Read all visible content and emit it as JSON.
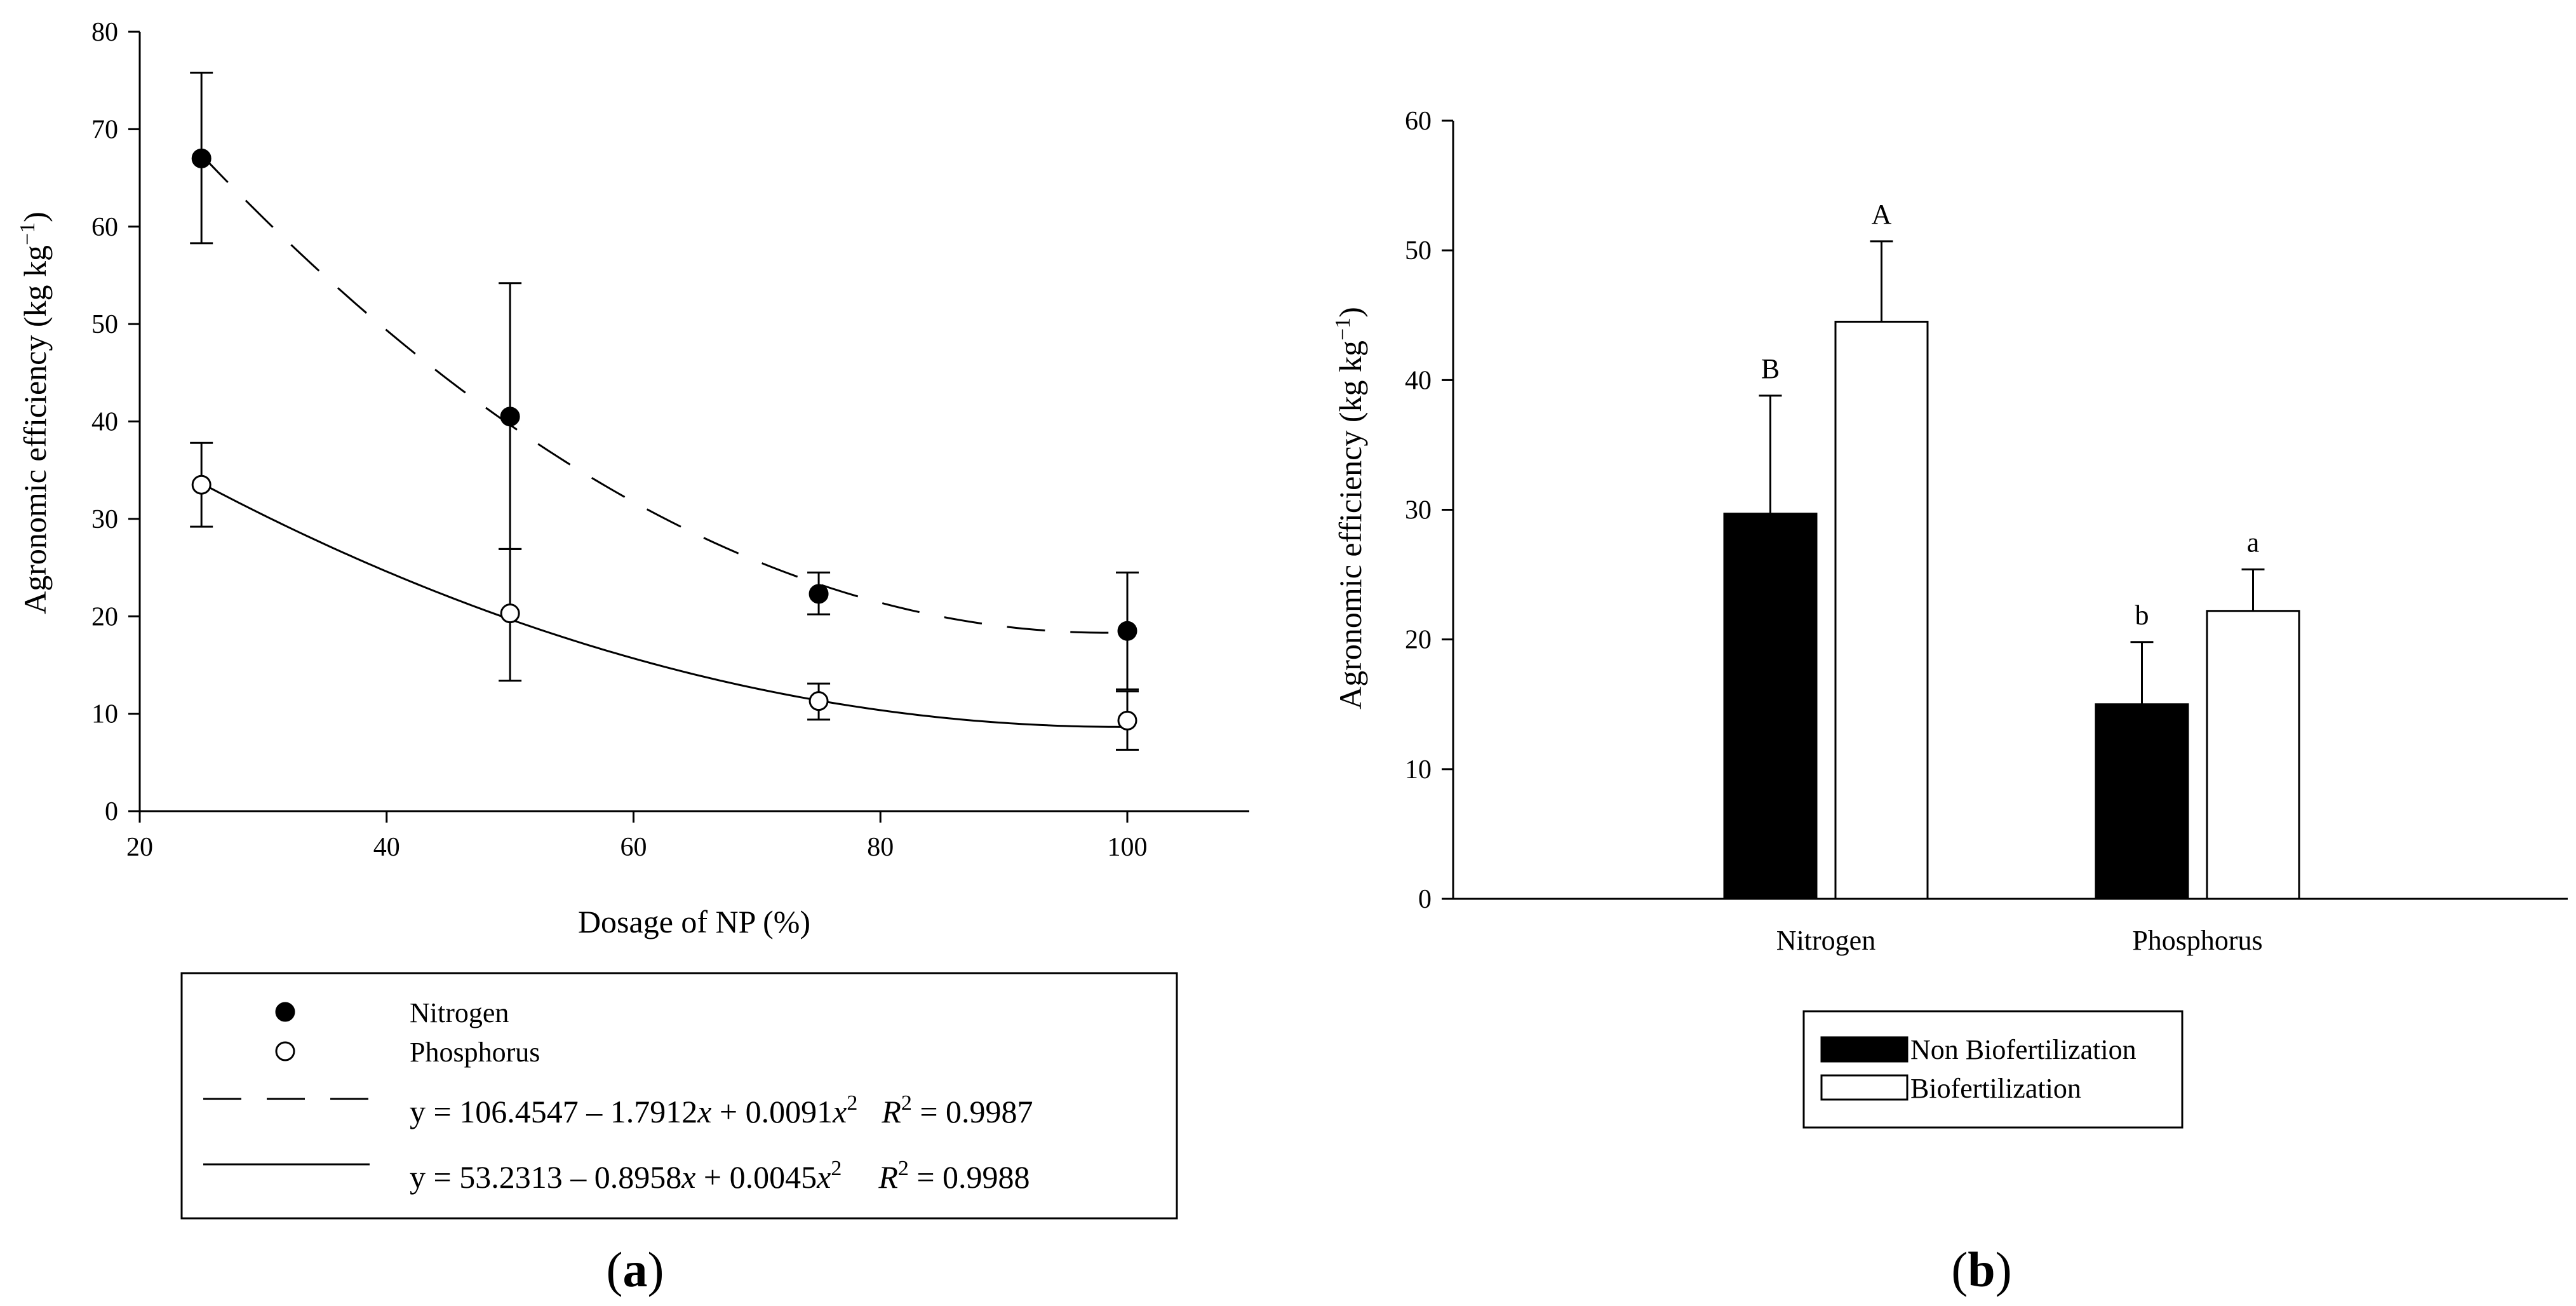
{
  "chart_data": [
    {
      "type": "scatter",
      "panel": "(a)",
      "panel_letter": "a",
      "xlabel": "Dosage of NP (%)",
      "ylabel": "Agronomic efficiency (kg kg",
      "ylabel_sup": "−1",
      "ylabel_close": ")",
      "xlim": [
        20,
        110
      ],
      "ylim": [
        0,
        80
      ],
      "xticks": [
        20,
        40,
        60,
        80,
        100
      ],
      "yticks": [
        0,
        10,
        20,
        30,
        40,
        50,
        60,
        70,
        80
      ],
      "series": [
        {
          "name": "Nitrogen",
          "marker": "filled-circle",
          "x": [
            25,
            50,
            75,
            100
          ],
          "y": [
            67,
            40.5,
            22.3,
            18.5
          ],
          "err_upper": [
            75.8,
            54.2,
            24.5,
            24.5
          ],
          "err_lower": [
            58.3,
            26.9,
            20.2,
            12.5
          ],
          "fit": {
            "a": 106.4547,
            "b": -1.7912,
            "c": 0.0091,
            "style": "dashed",
            "x_from": 25,
            "x_to": 100
          }
        },
        {
          "name": "Phosphorus",
          "marker": "open-circle",
          "x": [
            25,
            50,
            75,
            100
          ],
          "y": [
            33.5,
            20.3,
            11.3,
            9.3
          ],
          "err_upper": [
            37.8,
            26.9,
            13.1,
            12.3
          ],
          "err_lower": [
            29.2,
            13.4,
            9.4,
            6.3
          ],
          "fit": {
            "a": 53.2313,
            "b": -0.8958,
            "c": 0.0045,
            "style": "solid",
            "x_from": 25,
            "x_to": 100
          }
        }
      ],
      "legend": {
        "entries": [
          "Nitrogen",
          "Phosphorus"
        ],
        "equations": [
          {
            "line": "dashed",
            "y_eq": "y = 106.4547 – 1.7912",
            "x1": "x",
            "mid": " + 0.0091",
            "x2": "x",
            "exp": "2",
            "r_label": "R",
            "r_exp": "2",
            "r_val": " = 0.9987"
          },
          {
            "line": "solid",
            "y_eq": "y = 53.2313 – 0.8958",
            "x1": "x",
            "mid": " + 0.0045",
            "x2": "x",
            "exp": "2",
            "r_label": "R",
            "r_exp": "2",
            "r_val": " = 0.9988"
          }
        ]
      }
    },
    {
      "type": "bar",
      "panel": "(b)",
      "panel_letter": "b",
      "categories": [
        "Nitrogen",
        "Phosphorus"
      ],
      "ylabel": "Agronomic efficiency (kg kg",
      "ylabel_sup": "−1",
      "ylabel_close": ")",
      "ylim": [
        0,
        60
      ],
      "yticks": [
        0,
        10,
        20,
        30,
        40,
        50,
        60
      ],
      "series": [
        {
          "name": "Non Biofertilization",
          "color": "#000000",
          "values": [
            29.7,
            15.0
          ],
          "err_upper": [
            38.8,
            19.8
          ],
          "letters": [
            "B",
            "b"
          ]
        },
        {
          "name": "Biofertilization",
          "color": "#ffffff",
          "values": [
            44.5,
            22.2
          ],
          "err_upper": [
            50.7,
            25.4
          ],
          "letters": [
            "A",
            "a"
          ]
        }
      ],
      "legend": {
        "entries": [
          "Non Biofertilization",
          "Biofertilization"
        ]
      }
    }
  ]
}
